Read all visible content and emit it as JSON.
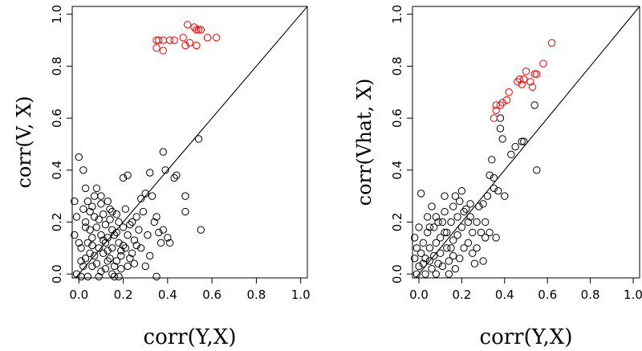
{
  "chart_data": [
    {
      "type": "scatter",
      "xlabel": "corr(Y,X)",
      "ylabel": "corr(V, X)",
      "xlim": [
        -0.03,
        1.03
      ],
      "ylim": [
        -0.015,
        1.03
      ],
      "xticks": [
        "0.0",
        "0.2",
        "0.4",
        "0.6",
        "0.8",
        "1.0"
      ],
      "yticks": [
        "0.0",
        "0.2",
        "0.4",
        "0.6",
        "0.8",
        "1.0"
      ],
      "reference_line": "y = x",
      "grid": false,
      "series": [
        {
          "color": "#000000",
          "points": [
            [
              -0.02,
              0.28
            ],
            [
              -0.01,
              0.22
            ],
            [
              -0.02,
              0.15
            ],
            [
              0.0,
              0.12
            ],
            [
              0.01,
              0.05
            ],
            [
              -0.01,
              0.0
            ],
            [
              0.01,
              -0.01
            ],
            [
              0.02,
              0.03
            ],
            [
              0.0,
              0.45
            ],
            [
              0.02,
              0.4
            ],
            [
              0.03,
              0.33
            ],
            [
              0.04,
              0.28
            ],
            [
              0.02,
              0.25
            ],
            [
              0.03,
              0.2
            ],
            [
              0.05,
              0.17
            ],
            [
              0.04,
              0.12
            ],
            [
              0.05,
              0.08
            ],
            [
              0.03,
              0.06
            ],
            [
              0.06,
              0.03
            ],
            [
              0.04,
              -0.01
            ],
            [
              0.07,
              0.3
            ],
            [
              0.06,
              0.26
            ],
            [
              0.07,
              0.22
            ],
            [
              0.08,
              0.18
            ],
            [
              0.06,
              0.14
            ],
            [
              0.09,
              0.1
            ],
            [
              0.07,
              0.07
            ],
            [
              0.08,
              0.04
            ],
            [
              0.1,
              0.01
            ],
            [
              0.09,
              -0.01
            ],
            [
              0.08,
              0.33
            ],
            [
              0.1,
              0.3
            ],
            [
              0.1,
              0.27
            ],
            [
              0.11,
              0.23
            ],
            [
              0.12,
              0.19
            ],
            [
              0.1,
              0.15
            ],
            [
              0.12,
              0.12
            ],
            [
              0.11,
              0.08
            ],
            [
              0.13,
              0.05
            ],
            [
              0.12,
              0.02
            ],
            [
              0.13,
              0.28
            ],
            [
              0.14,
              0.25
            ],
            [
              0.14,
              0.21
            ],
            [
              0.15,
              0.17
            ],
            [
              0.13,
              0.14
            ],
            [
              0.15,
              0.1
            ],
            [
              0.14,
              0.06
            ],
            [
              0.16,
              0.03
            ],
            [
              0.15,
              0.0
            ],
            [
              0.16,
              -0.01
            ],
            [
              0.17,
              0.23
            ],
            [
              0.18,
              0.2
            ],
            [
              0.17,
              0.16
            ],
            [
              0.18,
              0.12
            ],
            [
              0.19,
              0.09
            ],
            [
              0.17,
              0.05
            ],
            [
              0.19,
              0.02
            ],
            [
              0.18,
              -0.01
            ],
            [
              0.2,
              0.37
            ],
            [
              0.22,
              0.38
            ],
            [
              0.21,
              0.25
            ],
            [
              0.2,
              0.18
            ],
            [
              0.22,
              0.15
            ],
            [
              0.21,
              0.1
            ],
            [
              0.23,
              0.06
            ],
            [
              0.22,
              0.03
            ],
            [
              0.24,
              0.2
            ],
            [
              0.25,
              0.13
            ],
            [
              0.24,
              0.08
            ],
            [
              0.26,
              0.22
            ],
            [
              0.27,
              0.17
            ],
            [
              0.28,
              0.29
            ],
            [
              0.29,
              0.24
            ],
            [
              0.28,
              0.1
            ],
            [
              0.3,
              0.31
            ],
            [
              0.3,
              0.03
            ],
            [
              0.31,
              0.15
            ],
            [
              0.32,
              0.39
            ],
            [
              0.33,
              0.3
            ],
            [
              0.34,
              0.2
            ],
            [
              0.35,
              0.22
            ],
            [
              0.36,
              0.16
            ],
            [
              0.37,
              0.12
            ],
            [
              0.38,
              0.47
            ],
            [
              0.39,
              0.4
            ],
            [
              0.38,
              0.17
            ],
            [
              0.4,
              0.14
            ],
            [
              0.41,
              0.12
            ],
            [
              0.43,
              0.37
            ],
            [
              0.44,
              0.38
            ],
            [
              0.48,
              0.3
            ],
            [
              0.48,
              0.24
            ],
            [
              0.54,
              0.52
            ],
            [
              0.55,
              0.17
            ],
            [
              0.03,
              0.18
            ],
            [
              0.05,
              0.24
            ],
            [
              0.09,
              0.21
            ],
            [
              0.11,
              0.13
            ],
            [
              0.13,
              0.09
            ],
            [
              0.16,
              0.15
            ],
            [
              0.2,
              0.11
            ],
            [
              0.23,
              0.19
            ],
            [
              0.26,
              0.11
            ],
            [
              0.01,
              0.1
            ],
            [
              0.06,
              0.11
            ],
            [
              0.15,
              0.24
            ],
            [
              0.19,
              0.07
            ],
            [
              0.25,
              0.04
            ],
            [
              0.32,
              0.07
            ],
            [
              0.35,
              -0.01
            ]
          ]
        },
        {
          "color": "#ee0000",
          "points": [
            [
              0.35,
              0.9
            ],
            [
              0.36,
              0.9
            ],
            [
              0.35,
              0.87
            ],
            [
              0.38,
              0.86
            ],
            [
              0.38,
              0.9
            ],
            [
              0.41,
              0.9
            ],
            [
              0.43,
              0.9
            ],
            [
              0.47,
              0.91
            ],
            [
              0.48,
              0.88
            ],
            [
              0.49,
              0.96
            ],
            [
              0.5,
              0.89
            ],
            [
              0.52,
              0.95
            ],
            [
              0.53,
              0.94
            ],
            [
              0.54,
              0.94
            ],
            [
              0.55,
              0.94
            ],
            [
              0.53,
              0.88
            ],
            [
              0.58,
              0.91
            ],
            [
              0.62,
              0.91
            ]
          ]
        }
      ]
    },
    {
      "type": "scatter",
      "xlabel": "corr(Y,X)",
      "ylabel": "corr(Vhat, X)",
      "xlim": [
        -0.03,
        1.03
      ],
      "ylim": [
        -0.015,
        1.03
      ],
      "xticks": [
        "0.0",
        "0.2",
        "0.4",
        "0.6",
        "0.8",
        "1.0"
      ],
      "yticks": [
        "0.0",
        "0.2",
        "0.4",
        "0.6",
        "0.8",
        "1.0"
      ],
      "reference_line": "y = x",
      "grid": false,
      "series": [
        {
          "color": "#000000",
          "points": [
            [
              -0.02,
              0.14
            ],
            [
              -0.01,
              0.1
            ],
            [
              -0.02,
              0.06
            ],
            [
              0.0,
              0.03
            ],
            [
              -0.01,
              0.0
            ],
            [
              0.01,
              0.31
            ],
            [
              0.01,
              0.08
            ],
            [
              0.02,
              0.04
            ],
            [
              0.02,
              0.12
            ],
            [
              0.03,
              0.0
            ],
            [
              0.04,
              0.22
            ],
            [
              0.04,
              0.16
            ],
            [
              0.05,
              0.1
            ],
            [
              0.05,
              0.05
            ],
            [
              0.06,
              0.02
            ],
            [
              0.06,
              0.26
            ],
            [
              0.07,
              0.18
            ],
            [
              0.08,
              0.12
            ],
            [
              0.07,
              0.07
            ],
            [
              0.08,
              0.0
            ],
            [
              0.09,
              0.2
            ],
            [
              0.1,
              0.14
            ],
            [
              0.1,
              0.08
            ],
            [
              0.11,
              0.03
            ],
            [
              0.12,
              0.3
            ],
            [
              0.12,
              0.24
            ],
            [
              0.12,
              0.16
            ],
            [
              0.13,
              0.1
            ],
            [
              0.14,
              0.05
            ],
            [
              0.14,
              0.0
            ],
            [
              0.15,
              0.2
            ],
            [
              0.16,
              0.13
            ],
            [
              0.16,
              0.07
            ],
            [
              0.17,
              0.02
            ],
            [
              0.17,
              0.3
            ],
            [
              0.18,
              0.22
            ],
            [
              0.18,
              0.15
            ],
            [
              0.19,
              0.28
            ],
            [
              0.2,
              0.32
            ],
            [
              0.2,
              0.18
            ],
            [
              0.21,
              0.1
            ],
            [
              0.22,
              0.25
            ],
            [
              0.23,
              0.2
            ],
            [
              0.24,
              0.27
            ],
            [
              0.25,
              0.16
            ],
            [
              0.25,
              0.08
            ],
            [
              0.27,
              0.2
            ],
            [
              0.28,
              0.26
            ],
            [
              0.29,
              0.16
            ],
            [
              0.3,
              0.27
            ],
            [
              0.31,
              0.2
            ],
            [
              0.31,
              0.14
            ],
            [
              0.32,
              0.3
            ],
            [
              0.33,
              0.38
            ],
            [
              0.33,
              0.16
            ],
            [
              0.34,
              0.44
            ],
            [
              0.35,
              0.37
            ],
            [
              0.35,
              0.33
            ],
            [
              0.36,
              0.14
            ],
            [
              0.37,
              0.32
            ],
            [
              0.38,
              0.6
            ],
            [
              0.38,
              0.56
            ],
            [
              0.39,
              0.52
            ],
            [
              0.4,
              0.3
            ],
            [
              0.43,
              0.46
            ],
            [
              0.45,
              0.49
            ],
            [
              0.48,
              0.51
            ],
            [
              0.49,
              0.51
            ],
            [
              0.54,
              0.65
            ],
            [
              0.55,
              0.4
            ],
            [
              0.03,
              0.06
            ],
            [
              0.05,
              0.18
            ],
            [
              0.09,
              0.04
            ],
            [
              0.11,
              0.2
            ],
            [
              0.13,
              0.16
            ],
            [
              0.15,
              0.1
            ],
            [
              0.19,
              0.06
            ],
            [
              0.21,
              0.24
            ],
            [
              0.23,
              0.12
            ],
            [
              0.26,
              0.04
            ],
            [
              0.0,
              0.18
            ],
            [
              0.08,
              0.22
            ],
            [
              0.16,
              0.26
            ],
            [
              0.24,
              0.22
            ],
            [
              0.27,
              0.1
            ],
            [
              0.3,
              0.05
            ]
          ]
        },
        {
          "color": "#ee0000",
          "points": [
            [
              0.35,
              0.6
            ],
            [
              0.36,
              0.63
            ],
            [
              0.36,
              0.65
            ],
            [
              0.38,
              0.65
            ],
            [
              0.39,
              0.66
            ],
            [
              0.41,
              0.67
            ],
            [
              0.42,
              0.7
            ],
            [
              0.46,
              0.74
            ],
            [
              0.47,
              0.75
            ],
            [
              0.48,
              0.73
            ],
            [
              0.49,
              0.75
            ],
            [
              0.5,
              0.78
            ],
            [
              0.52,
              0.74
            ],
            [
              0.53,
              0.72
            ],
            [
              0.54,
              0.77
            ],
            [
              0.55,
              0.77
            ],
            [
              0.58,
              0.81
            ],
            [
              0.62,
              0.89
            ]
          ]
        }
      ]
    }
  ]
}
